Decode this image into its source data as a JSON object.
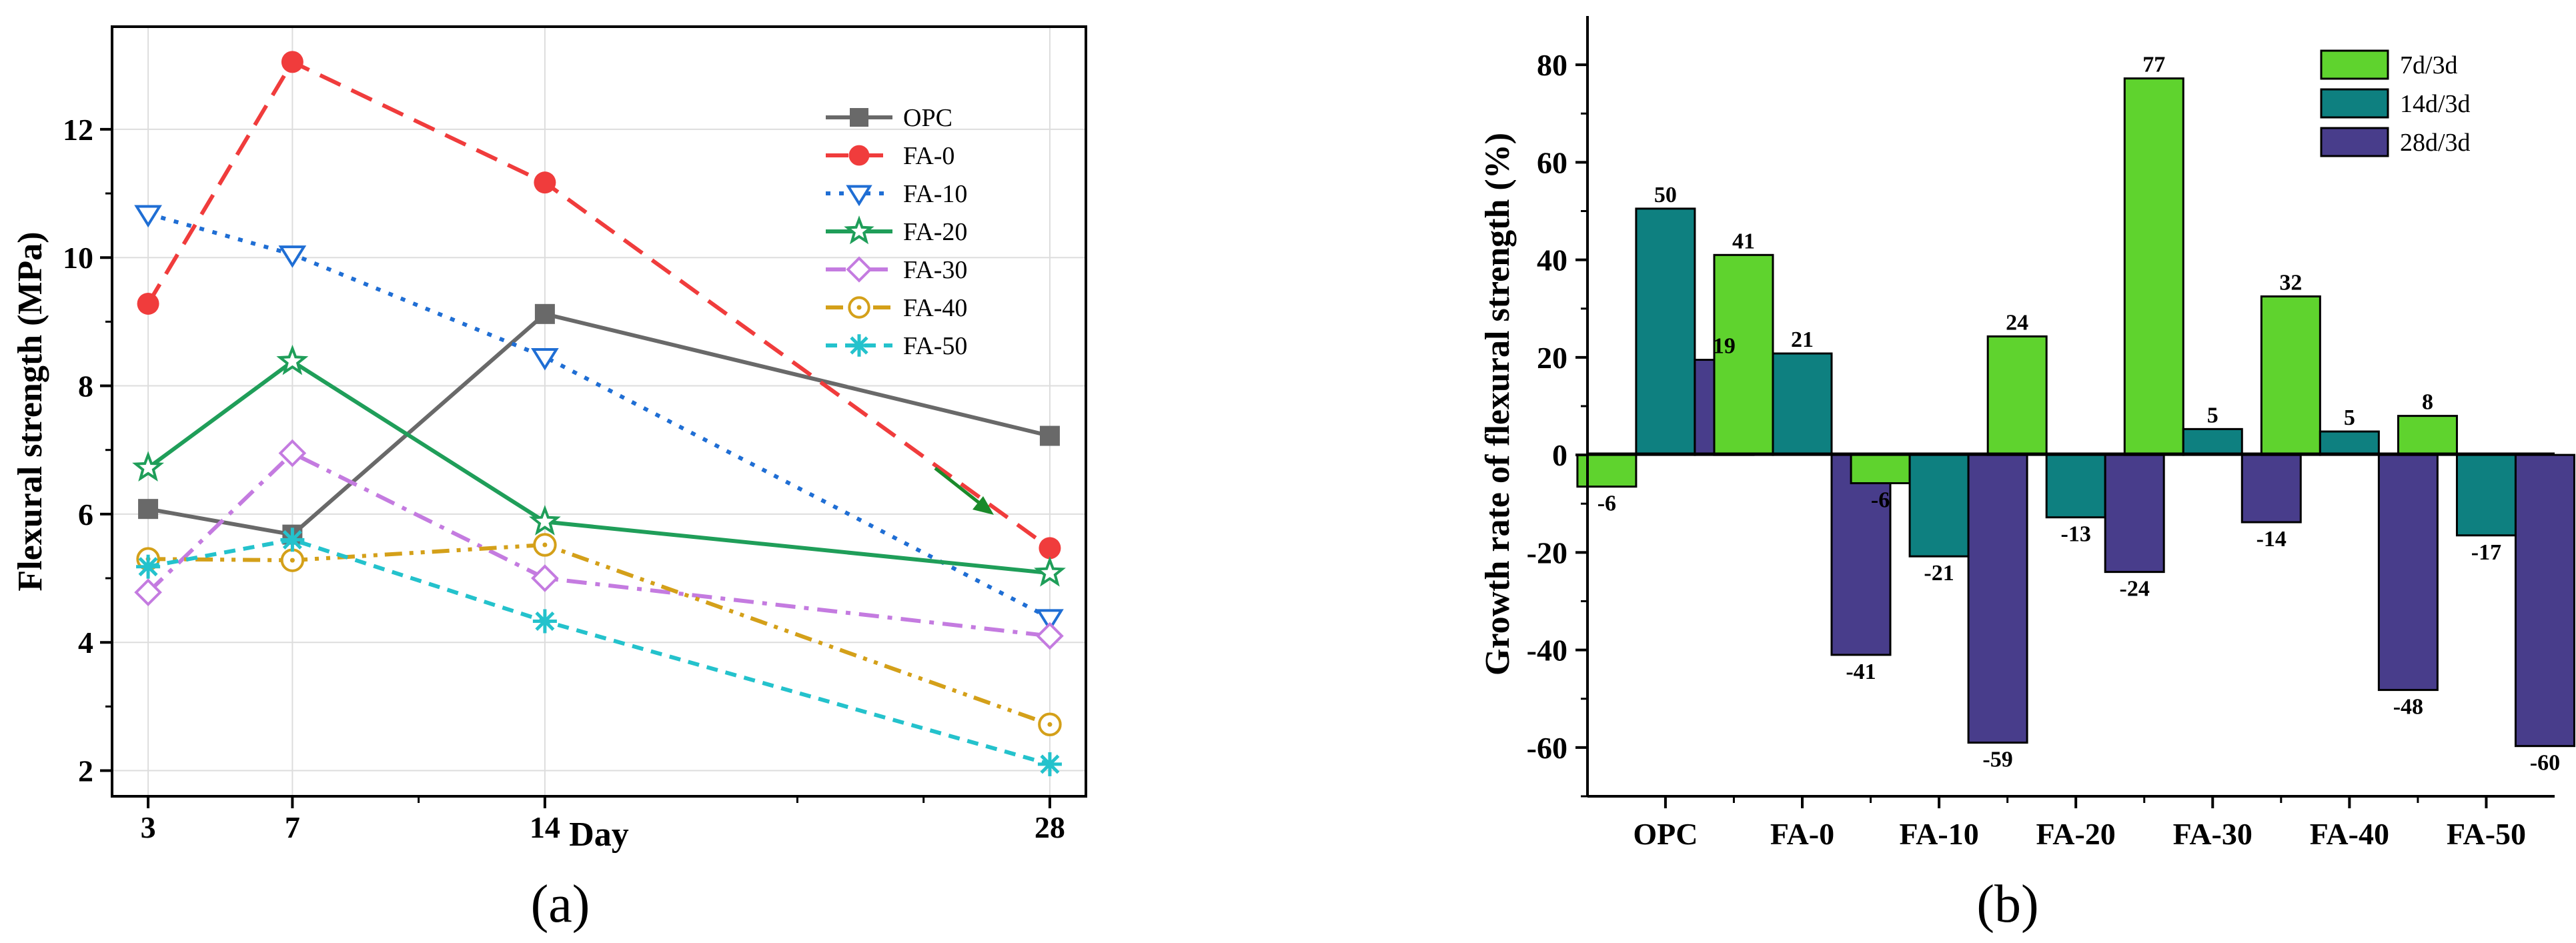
{
  "chart_data": [
    {
      "type": "line",
      "panel_label": "(a)",
      "title": "",
      "xlabel": "Day",
      "ylabel": "Flexural strength (MPa)",
      "x": [
        3,
        7,
        14,
        28
      ],
      "x_tick_labels": [
        "3",
        "7",
        "14",
        "28"
      ],
      "xlim": [
        2,
        29
      ],
      "ylim": [
        1.6,
        13.6
      ],
      "y_ticks": [
        2,
        4,
        6,
        8,
        10,
        12
      ],
      "y_tick_labels": [
        "2",
        "4",
        "6",
        "8",
        "10",
        "12"
      ],
      "grid": true,
      "legend_position": "top-right",
      "series": [
        {
          "name": "OPC",
          "values": [
            6.08,
            5.68,
            9.12,
            7.22
          ],
          "color": "#696969",
          "dash": "solid",
          "marker": "square"
        },
        {
          "name": "FA-0",
          "values": [
            9.28,
            13.05,
            11.17,
            5.47
          ],
          "color": "#f03c3c",
          "dash": "dash",
          "marker": "circle"
        },
        {
          "name": "FA-10",
          "values": [
            10.68,
            10.05,
            8.45,
            4.38
          ],
          "color": "#1f6ed4",
          "dash": "dot",
          "marker": "triangle-down-open"
        },
        {
          "name": "FA-20",
          "values": [
            6.72,
            8.38,
            5.88,
            5.08
          ],
          "color": "#1f9e59",
          "dash": "solid",
          "marker": "star-open"
        },
        {
          "name": "FA-30",
          "values": [
            4.78,
            6.95,
            5.0,
            4.1
          ],
          "color": "#c47be0",
          "dash": "dashdot",
          "marker": "diamond-open"
        },
        {
          "name": "FA-40",
          "values": [
            5.3,
            5.28,
            5.52,
            2.72
          ],
          "color": "#d4a019",
          "dash": "dashdotdot",
          "marker": "circle-dot-open"
        },
        {
          "name": "FA-50",
          "values": [
            5.18,
            5.6,
            4.33,
            2.1
          ],
          "color": "#24c2cc",
          "dash": "shortdash",
          "marker": "asterisk"
        }
      ],
      "annotations": [
        {
          "type": "arrow",
          "color": "#1a8a2a",
          "target_series": "FA-20",
          "target_x": 28
        }
      ]
    },
    {
      "type": "bar",
      "panel_label": "(b)",
      "title": "",
      "xlabel": "",
      "ylabel": "Growth rate of flexural strength (%)",
      "categories": [
        "OPC",
        "FA-0",
        "FA-10",
        "FA-20",
        "FA-30",
        "FA-40",
        "FA-50"
      ],
      "ylim": [
        -70,
        90
      ],
      "y_ticks": [
        -60,
        -40,
        -20,
        0,
        20,
        40,
        60,
        80
      ],
      "y_tick_labels": [
        "-60",
        "-40",
        "-20",
        "0",
        "20",
        "40",
        "60",
        "80"
      ],
      "grid": false,
      "legend_position": "top-right",
      "series": [
        {
          "name": "7d/3d",
          "color": "#5fd32e",
          "values": [
            -6.5,
            41,
            -5.8,
            24.3,
            77.2,
            32.5,
            8
          ],
          "labels": [
            "-6",
            "41",
            "-6",
            "24",
            "77",
            "32",
            "8"
          ]
        },
        {
          "name": "14d/3d",
          "color": "#0e8080",
          "values": [
            50.5,
            20.8,
            -20.8,
            -12.8,
            5.3,
            4.8,
            -16.5
          ],
          "labels": [
            "50",
            "21",
            "-21",
            "-13",
            "5",
            "5",
            "-17"
          ]
        },
        {
          "name": "28d/3d",
          "color": "#483d8b",
          "values": [
            19.5,
            -41,
            -59,
            -24,
            -13.8,
            -48.2,
            -59.7
          ],
          "labels": [
            "19",
            "-41",
            "-59",
            "-24",
            "-14",
            "-48",
            "-60"
          ]
        }
      ]
    }
  ]
}
